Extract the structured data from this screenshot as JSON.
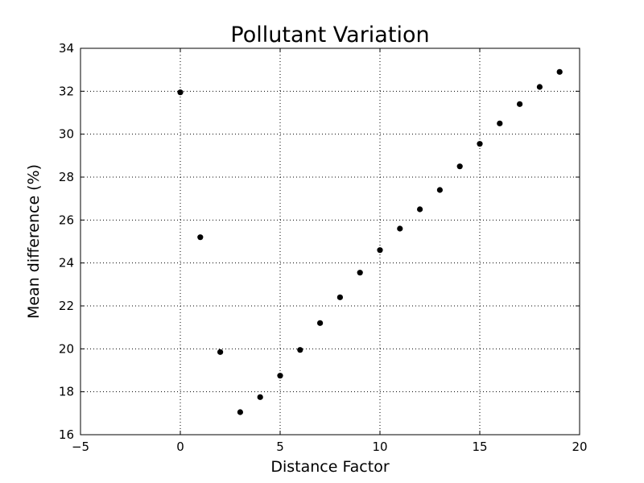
{
  "chart_data": {
    "type": "scatter",
    "title": "Pollutant Variation",
    "xlabel": "Distance Factor",
    "ylabel": "Mean difference (%)",
    "xlim": [
      -5,
      20
    ],
    "ylim": [
      16,
      34
    ],
    "xticks": [
      -5,
      0,
      5,
      10,
      15,
      20
    ],
    "yticks": [
      16,
      18,
      20,
      22,
      24,
      26,
      28,
      30,
      32,
      34
    ],
    "xtick_labels": [
      "−5",
      "0",
      "5",
      "10",
      "15",
      "20"
    ],
    "ytick_labels": [
      "16",
      "18",
      "20",
      "22",
      "24",
      "26",
      "28",
      "30",
      "32",
      "34"
    ],
    "grid": true,
    "series": [
      {
        "color": "#000000",
        "x": [
          0,
          1,
          2,
          3,
          4,
          5,
          6,
          7,
          8,
          9,
          10,
          11,
          12,
          13,
          14,
          15,
          16,
          17,
          18,
          19
        ],
        "y": [
          31.95,
          25.2,
          19.85,
          17.05,
          17.75,
          18.75,
          19.95,
          21.2,
          22.4,
          23.55,
          24.6,
          25.6,
          26.5,
          27.4,
          28.5,
          29.55,
          30.5,
          31.4,
          32.2,
          32.9
        ]
      }
    ]
  }
}
